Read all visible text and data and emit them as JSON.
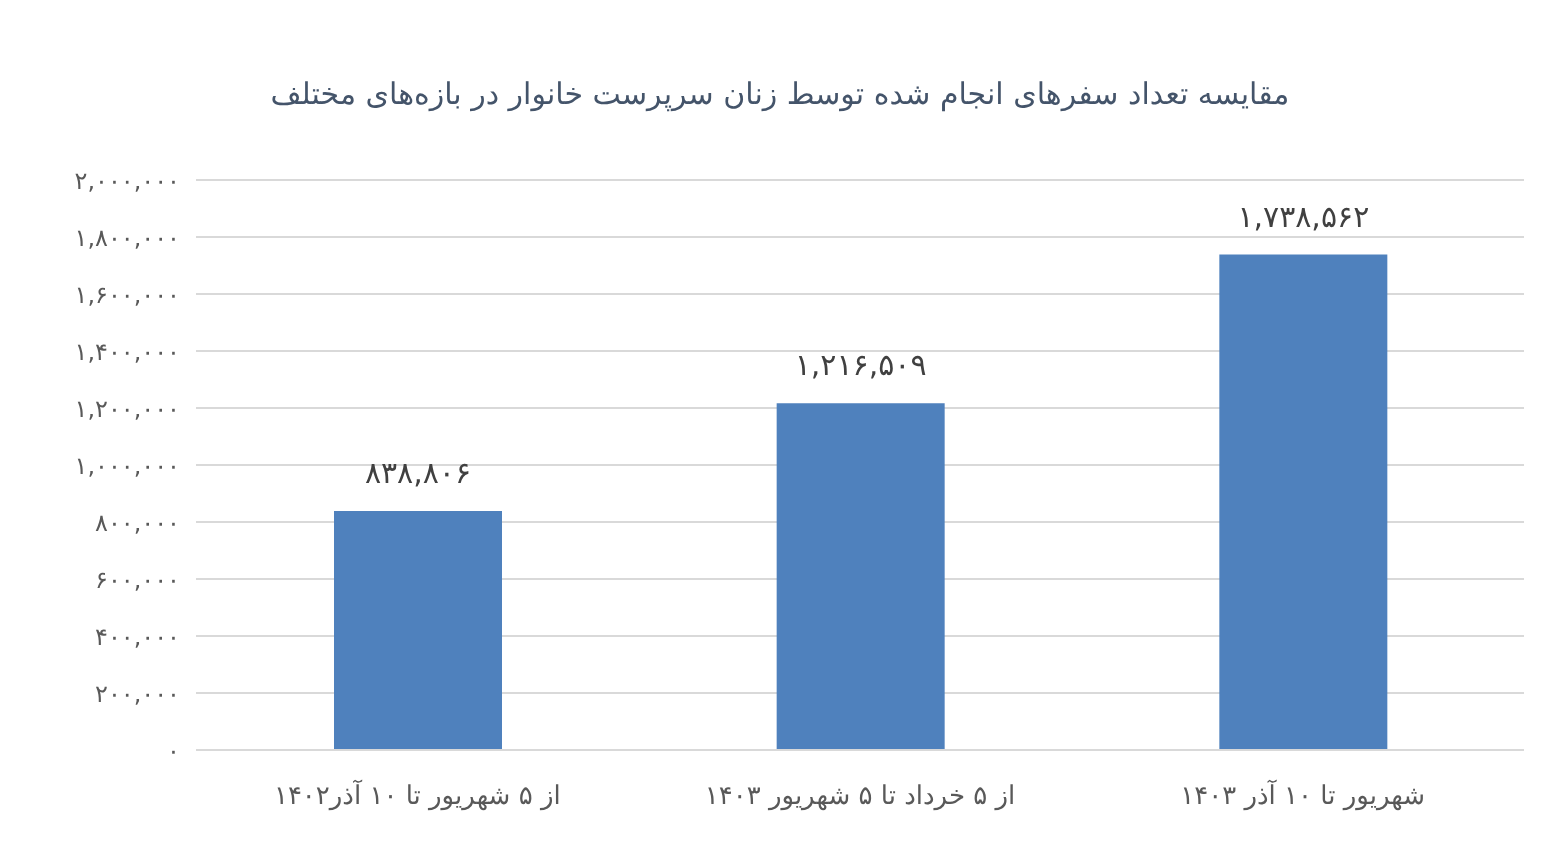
{
  "chart_data": {
    "type": "bar",
    "title": "مقایسه تعداد سفرهای انجام شده توسط زنان سرپرست خانوار در بازه‌های مختلف",
    "categories": [
      "از ۵ شهریور تا ۱۰ آذر۱۴۰۲",
      "از ۵ خرداد تا ۵ شهریور  ۱۴۰۳",
      "شهریور تا ۱۰ آذر ۱۴۰۳"
    ],
    "values": [
      838806,
      1216509,
      1738562
    ],
    "value_labels": [
      "۸۳۸,۸۰۶",
      "۱,۲۱۶,۵۰۹",
      "۱,۷۳۸,۵۶۲"
    ],
    "color": "#4f81bd",
    "ylim": [
      0,
      2000000
    ],
    "yticks": [
      {
        "value": 0,
        "label": "۰"
      },
      {
        "value": 200000,
        "label": "۲۰۰,۰۰۰"
      },
      {
        "value": 400000,
        "label": "۴۰۰,۰۰۰"
      },
      {
        "value": 600000,
        "label": "۶۰۰,۰۰۰"
      },
      {
        "value": 800000,
        "label": "۸۰۰,۰۰۰"
      },
      {
        "value": 1000000,
        "label": "۱,۰۰۰,۰۰۰"
      },
      {
        "value": 1200000,
        "label": "۱,۲۰۰,۰۰۰"
      },
      {
        "value": 1400000,
        "label": "۱,۴۰۰,۰۰۰"
      },
      {
        "value": 1600000,
        "label": "۱,۶۰۰,۰۰۰"
      },
      {
        "value": 1800000,
        "label": "۱,۸۰۰,۰۰۰"
      },
      {
        "value": 2000000,
        "label": "۲,۰۰۰,۰۰۰"
      }
    ],
    "grid": "y"
  }
}
